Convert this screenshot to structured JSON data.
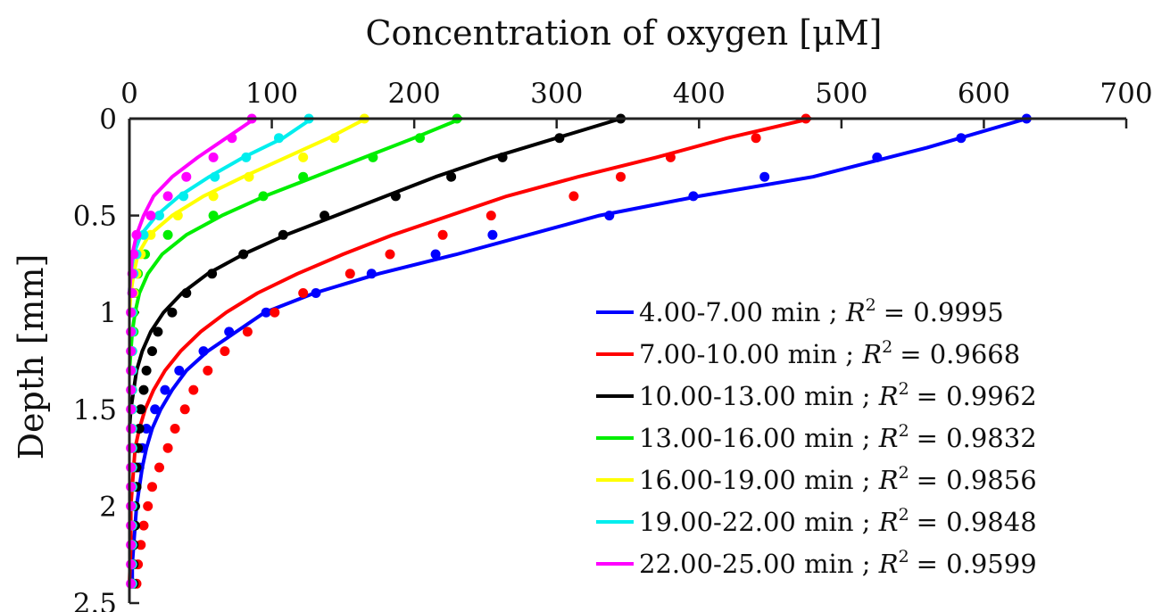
{
  "chart_data": {
    "type": "line",
    "title": "",
    "xlabel": "Concentration of oxygen [μM]",
    "ylabel": "Depth [mm]",
    "x_axis_position": "top",
    "y_reversed": true,
    "xlim": [
      0,
      700
    ],
    "ylim": [
      0,
      2.5
    ],
    "xticks": [
      "0",
      "100",
      "200",
      "300",
      "400",
      "500",
      "600",
      "700"
    ],
    "yticks": [
      "0",
      "0.5",
      "1",
      "1.5",
      "2",
      "2.5"
    ],
    "grid": false,
    "legend": "lower-right",
    "series": [
      {
        "name": "4.00-7.00 min ; R² = 0.9995",
        "label_main": "4.00-7.00 min ; ",
        "label_r2": "= 0.9995",
        "color": "#0000ff",
        "fit": [
          [
            630,
            0
          ],
          [
            560,
            0.15
          ],
          [
            480,
            0.3
          ],
          [
            400,
            0.4
          ],
          [
            330,
            0.5
          ],
          [
            280,
            0.6
          ],
          [
            230,
            0.7
          ],
          [
            175,
            0.8
          ],
          [
            130,
            0.9
          ],
          [
            95,
            1.0
          ],
          [
            75,
            1.1
          ],
          [
            55,
            1.2
          ],
          [
            40,
            1.3
          ],
          [
            30,
            1.4
          ],
          [
            22,
            1.5
          ],
          [
            16,
            1.6
          ],
          [
            12,
            1.7
          ],
          [
            9,
            1.8
          ],
          [
            7,
            1.9
          ],
          [
            5,
            2.0
          ],
          [
            4,
            2.1
          ],
          [
            3,
            2.2
          ],
          [
            2,
            2.3
          ],
          [
            2,
            2.4
          ]
        ],
        "points": [
          [
            630,
            0
          ],
          [
            584,
            0.1
          ],
          [
            525,
            0.2
          ],
          [
            446,
            0.3
          ],
          [
            396,
            0.4
          ],
          [
            337,
            0.5
          ],
          [
            255,
            0.6
          ],
          [
            215,
            0.7
          ],
          [
            170,
            0.8
          ],
          [
            131,
            0.9
          ],
          [
            96,
            1.0
          ],
          [
            70,
            1.1
          ],
          [
            52,
            1.2
          ],
          [
            35,
            1.3
          ],
          [
            25,
            1.4
          ],
          [
            18,
            1.5
          ],
          [
            12,
            1.6
          ],
          [
            9,
            1.7
          ],
          [
            7,
            1.8
          ],
          [
            5,
            1.9
          ],
          [
            4,
            2.0
          ],
          [
            3,
            2.1
          ],
          [
            3,
            2.2
          ],
          [
            2,
            2.3
          ],
          [
            2,
            2.4
          ]
        ]
      },
      {
        "name": "7.00-10.00 min ; R² = 0.9668",
        "label_main": "7.00-10.00 min ; ",
        "label_r2": "= 0.9668",
        "color": "#ff0000",
        "fit": [
          [
            478,
            0
          ],
          [
            420,
            0.1
          ],
          [
            370,
            0.2
          ],
          [
            315,
            0.3
          ],
          [
            265,
            0.4
          ],
          [
            225,
            0.5
          ],
          [
            185,
            0.6
          ],
          [
            150,
            0.7
          ],
          [
            118,
            0.8
          ],
          [
            90,
            0.9
          ],
          [
            68,
            1.0
          ],
          [
            50,
            1.1
          ],
          [
            36,
            1.2
          ],
          [
            25,
            1.3
          ],
          [
            17,
            1.4
          ],
          [
            11,
            1.5
          ],
          [
            7,
            1.6
          ],
          [
            4,
            1.7
          ],
          [
            3,
            1.8
          ],
          [
            2,
            1.9
          ],
          [
            1,
            2.0
          ],
          [
            1,
            2.2
          ],
          [
            0,
            2.4
          ]
        ],
        "points": [
          [
            475,
            0
          ],
          [
            440,
            0.1
          ],
          [
            380,
            0.2
          ],
          [
            345,
            0.3
          ],
          [
            312,
            0.4
          ],
          [
            254,
            0.5
          ],
          [
            220,
            0.6
          ],
          [
            183,
            0.7
          ],
          [
            155,
            0.8
          ],
          [
            122,
            0.9
          ],
          [
            102,
            1.0
          ],
          [
            83,
            1.1
          ],
          [
            67,
            1.2
          ],
          [
            55,
            1.3
          ],
          [
            45,
            1.4
          ],
          [
            39,
            1.5
          ],
          [
            32,
            1.6
          ],
          [
            27,
            1.7
          ],
          [
            21,
            1.8
          ],
          [
            16,
            1.9
          ],
          [
            13,
            2.0
          ],
          [
            10,
            2.1
          ],
          [
            8,
            2.2
          ],
          [
            6,
            2.3
          ],
          [
            5,
            2.4
          ]
        ]
      },
      {
        "name": "10.00-13.00 min ; R² = 0.9962",
        "label_main": "10.00-13.00 min ; ",
        "label_r2": "= 0.9962",
        "color": "#000000",
        "fit": [
          [
            345,
            0
          ],
          [
            300,
            0.1
          ],
          [
            255,
            0.2
          ],
          [
            215,
            0.3
          ],
          [
            180,
            0.4
          ],
          [
            145,
            0.5
          ],
          [
            110,
            0.6
          ],
          [
            80,
            0.7
          ],
          [
            55,
            0.8
          ],
          [
            37,
            0.9
          ],
          [
            24,
            1.0
          ],
          [
            15,
            1.1
          ],
          [
            9,
            1.2
          ],
          [
            5,
            1.3
          ],
          [
            3,
            1.4
          ],
          [
            1,
            1.5
          ],
          [
            0,
            1.6
          ]
        ],
        "points": [
          [
            345,
            0
          ],
          [
            302,
            0.1
          ],
          [
            262,
            0.2
          ],
          [
            226,
            0.3
          ],
          [
            187,
            0.4
          ],
          [
            137,
            0.5
          ],
          [
            108,
            0.6
          ],
          [
            80,
            0.7
          ],
          [
            58,
            0.8
          ],
          [
            40,
            0.9
          ],
          [
            30,
            1.0
          ],
          [
            20,
            1.1
          ],
          [
            16,
            1.2
          ],
          [
            12,
            1.3
          ],
          [
            10,
            1.4
          ],
          [
            8,
            1.5
          ],
          [
            7,
            1.6
          ],
          [
            6,
            1.7
          ],
          [
            5,
            1.8
          ],
          [
            5,
            1.9
          ],
          [
            4,
            2.0
          ],
          [
            4,
            2.1
          ],
          [
            3,
            2.2
          ],
          [
            3,
            2.3
          ],
          [
            3,
            2.4
          ]
        ]
      },
      {
        "name": "13.00-16.00 min ; R² = 0.9832",
        "label_main": "13.00-16.00 min ; ",
        "label_r2": "= 0.9832",
        "color": "#00ee00",
        "fit": [
          [
            233,
            0
          ],
          [
            200,
            0.1
          ],
          [
            165,
            0.2
          ],
          [
            130,
            0.3
          ],
          [
            95,
            0.4
          ],
          [
            65,
            0.5
          ],
          [
            40,
            0.6
          ],
          [
            23,
            0.7
          ],
          [
            13,
            0.8
          ],
          [
            7,
            0.9
          ],
          [
            4,
            1.0
          ],
          [
            2,
            1.1
          ],
          [
            1,
            1.2
          ],
          [
            0,
            1.3
          ]
        ],
        "points": [
          [
            230,
            0
          ],
          [
            204,
            0.1
          ],
          [
            171,
            0.2
          ],
          [
            122,
            0.3
          ],
          [
            94,
            0.4
          ],
          [
            59,
            0.5
          ],
          [
            27,
            0.6
          ],
          [
            11,
            0.7
          ],
          [
            6,
            0.8
          ],
          [
            4,
            0.9
          ],
          [
            3,
            1.0
          ],
          [
            3,
            1.1
          ],
          [
            2,
            1.2
          ],
          [
            2,
            1.3
          ],
          [
            2,
            1.4
          ],
          [
            2,
            1.5
          ],
          [
            2,
            1.6
          ],
          [
            2,
            1.7
          ],
          [
            2,
            1.8
          ],
          [
            2,
            1.9
          ],
          [
            2,
            2.0
          ],
          [
            2,
            2.1
          ],
          [
            2,
            2.2
          ],
          [
            2,
            2.3
          ],
          [
            2,
            2.4
          ]
        ]
      },
      {
        "name": "16.00-19.00 min ; R² = 0.9856",
        "label_main": "16.00-19.00 min ; ",
        "label_r2": "= 0.9856",
        "color": "#ffff00",
        "fit": [
          [
            166,
            0
          ],
          [
            140,
            0.1
          ],
          [
            110,
            0.2
          ],
          [
            80,
            0.3
          ],
          [
            52,
            0.4
          ],
          [
            30,
            0.5
          ],
          [
            14,
            0.6
          ],
          [
            6,
            0.7
          ],
          [
            3,
            0.8
          ],
          [
            1,
            0.9
          ],
          [
            0,
            1.0
          ]
        ],
        "points": [
          [
            165,
            0
          ],
          [
            144,
            0.1
          ],
          [
            122,
            0.2
          ],
          [
            84,
            0.3
          ],
          [
            59,
            0.4
          ],
          [
            34,
            0.5
          ],
          [
            15,
            0.6
          ],
          [
            8,
            0.7
          ],
          [
            5,
            0.8
          ],
          [
            3,
            0.9
          ],
          [
            2,
            1.0
          ],
          [
            2,
            1.1
          ],
          [
            2,
            1.2
          ],
          [
            2,
            1.3
          ],
          [
            2,
            1.4
          ],
          [
            2,
            1.5
          ],
          [
            2,
            1.6
          ],
          [
            2,
            1.7
          ],
          [
            2,
            1.8
          ],
          [
            2,
            1.9
          ],
          [
            2,
            2.0
          ],
          [
            2,
            2.1
          ],
          [
            2,
            2.2
          ],
          [
            2,
            2.3
          ],
          [
            2,
            2.4
          ]
        ]
      },
      {
        "name": "19.00-22.00 min ; R² = 0.9848",
        "label_main": "19.00-22.00 min ; ",
        "label_r2": "= 0.9848",
        "color": "#00eeee",
        "fit": [
          [
            128,
            0
          ],
          [
            108,
            0.1
          ],
          [
            80,
            0.2
          ],
          [
            56,
            0.3
          ],
          [
            35,
            0.4
          ],
          [
            19,
            0.5
          ],
          [
            8,
            0.6
          ],
          [
            3,
            0.7
          ],
          [
            1,
            0.8
          ],
          [
            0,
            0.9
          ]
        ],
        "points": [
          [
            126,
            0
          ],
          [
            105,
            0.1
          ],
          [
            82,
            0.2
          ],
          [
            60,
            0.3
          ],
          [
            38,
            0.4
          ],
          [
            21,
            0.5
          ],
          [
            10,
            0.6
          ],
          [
            5,
            0.7
          ],
          [
            3,
            0.8
          ],
          [
            2,
            0.9
          ],
          [
            2,
            1.0
          ],
          [
            2,
            1.1
          ],
          [
            2,
            1.2
          ],
          [
            2,
            1.3
          ],
          [
            2,
            1.4
          ],
          [
            2,
            1.5
          ],
          [
            2,
            1.6
          ],
          [
            2,
            1.7
          ],
          [
            2,
            1.8
          ],
          [
            2,
            1.9
          ],
          [
            2,
            2.0
          ],
          [
            2,
            2.1
          ],
          [
            2,
            2.2
          ],
          [
            2,
            2.3
          ],
          [
            2,
            2.4
          ]
        ]
      },
      {
        "name": "22.00-25.00 min ; R² = 0.9599",
        "label_main": "22.00-25.00 min ; ",
        "label_r2": "= 0.9599",
        "color": "#ff00ff",
        "fit": [
          [
            88,
            0
          ],
          [
            68,
            0.1
          ],
          [
            48,
            0.2
          ],
          [
            30,
            0.3
          ],
          [
            17,
            0.4
          ],
          [
            10,
            0.5
          ],
          [
            5,
            0.6
          ],
          [
            2,
            0.7
          ],
          [
            1,
            0.8
          ],
          [
            0,
            0.9
          ]
        ],
        "points": [
          [
            86,
            0
          ],
          [
            72,
            0.1
          ],
          [
            59,
            0.2
          ],
          [
            40,
            0.3
          ],
          [
            27,
            0.4
          ],
          [
            15,
            0.5
          ],
          [
            5,
            0.6
          ],
          [
            3,
            0.7
          ],
          [
            2,
            0.8
          ],
          [
            2,
            0.9
          ],
          [
            1,
            1.0
          ],
          [
            1,
            1.1
          ],
          [
            1,
            1.2
          ],
          [
            1,
            1.3
          ],
          [
            1,
            1.4
          ],
          [
            1,
            1.5
          ],
          [
            1,
            1.6
          ],
          [
            1,
            1.7
          ],
          [
            1,
            1.8
          ],
          [
            1,
            1.9
          ],
          [
            1,
            2.0
          ],
          [
            1,
            2.1
          ],
          [
            1,
            2.2
          ],
          [
            1,
            2.3
          ],
          [
            1,
            2.4
          ]
        ]
      }
    ]
  }
}
